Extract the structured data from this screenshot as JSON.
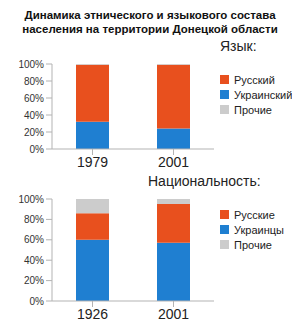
{
  "title": "Динамика этнического и языкового состава населения на территории Донецкой области",
  "chart_data": [
    {
      "type": "bar",
      "title": "Язык:",
      "categories": [
        "1979",
        "2001"
      ],
      "series": [
        {
          "name": "Русский",
          "color": "#e8501e",
          "values": [
            67,
            75
          ]
        },
        {
          "name": "Украинский",
          "color": "#1f7fd1",
          "values": [
            32,
            24
          ]
        },
        {
          "name": "Прочие",
          "color": "#cccccc",
          "values": [
            1,
            1
          ]
        }
      ],
      "stacked": true,
      "ylim": [
        0,
        100
      ],
      "yticks": [
        {
          "value": 0,
          "label": "0%"
        },
        {
          "value": 20,
          "label": "20%"
        },
        {
          "value": 40,
          "label": "40%"
        },
        {
          "value": 60,
          "label": "60%"
        },
        {
          "value": 80,
          "label": "80%"
        },
        {
          "value": 100,
          "label": "100%"
        }
      ],
      "grid": false,
      "legend": "right"
    },
    {
      "type": "bar",
      "title": "Национальность:",
      "categories": [
        "1926",
        "2001"
      ],
      "series": [
        {
          "name": "Русские",
          "color": "#e8501e",
          "values": [
            26,
            38
          ]
        },
        {
          "name": "Украинцы",
          "color": "#1f7fd1",
          "values": [
            60,
            57
          ]
        },
        {
          "name": "Прочие",
          "color": "#cccccc",
          "values": [
            14,
            5
          ]
        }
      ],
      "stacked": true,
      "ylim": [
        0,
        100
      ],
      "yticks": [
        {
          "value": 0,
          "label": "0%"
        },
        {
          "value": 20,
          "label": "20%"
        },
        {
          "value": 40,
          "label": "40%"
        },
        {
          "value": 60,
          "label": "60%"
        },
        {
          "value": 80,
          "label": "80%"
        },
        {
          "value": 100,
          "label": "100%"
        }
      ],
      "grid": false,
      "legend": "right"
    }
  ]
}
